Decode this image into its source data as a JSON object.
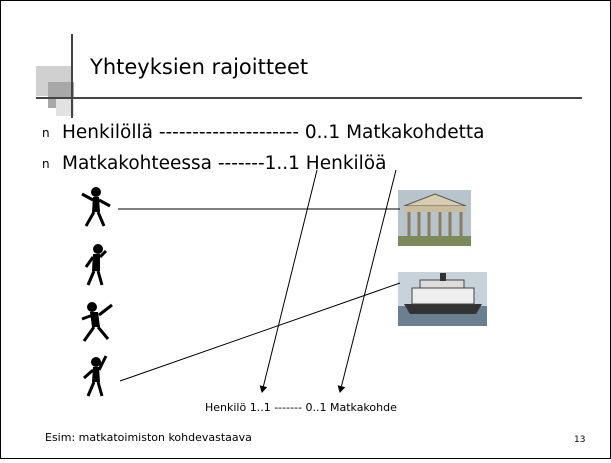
{
  "slide": {
    "title": "Yhteyksien rajoitteet",
    "bullets": [
      {
        "marker": "n",
        "text": "Henkilöllä --------------------- 0..1 Matkakohdetta"
      },
      {
        "marker": "n",
        "text": "Matkakohteessa -------1..1 Henkilöä"
      }
    ],
    "caption": "Henkilö 1..1 ------- 0..1 Matkakohde",
    "footer": "Esim: matkatoimiston kohdevastaava",
    "page_number": "13"
  }
}
